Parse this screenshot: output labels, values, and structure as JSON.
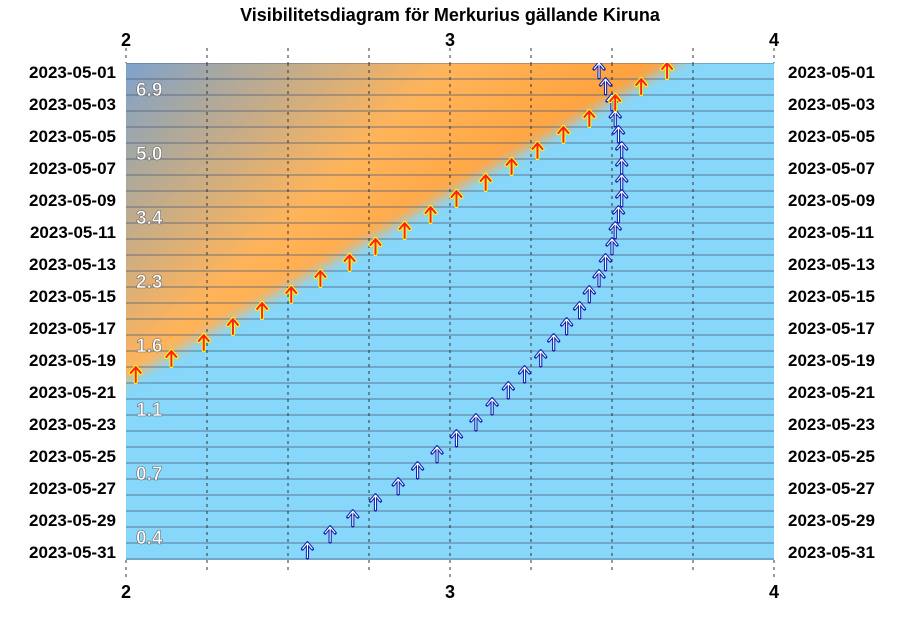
{
  "chart_data": {
    "type": "scatter",
    "title": "Visibilitetsdiagram för Merkurius gällande Kiruna",
    "xlim": [
      2,
      4
    ],
    "x_ticks": [
      "2",
      "3",
      "4"
    ],
    "dates": [
      "2023-05-01",
      "2023-05-03",
      "2023-05-05",
      "2023-05-07",
      "2023-05-09",
      "2023-05-11",
      "2023-05-13",
      "2023-05-15",
      "2023-05-17",
      "2023-05-19",
      "2023-05-21",
      "2023-05-23",
      "2023-05-25",
      "2023-05-27",
      "2023-05-29",
      "2023-05-31"
    ],
    "magnitudes": [
      {
        "label": "6.9",
        "date": "2023-05-02"
      },
      {
        "label": "5.0",
        "date": "2023-05-06"
      },
      {
        "label": "3.4",
        "date": "2023-05-10"
      },
      {
        "label": "2.3",
        "date": "2023-05-14"
      },
      {
        "label": "1.6",
        "date": "2023-05-18"
      },
      {
        "label": "1.1",
        "date": "2023-05-22"
      },
      {
        "label": "0.7",
        "date": "2023-05-26"
      },
      {
        "label": "0.4",
        "date": "2023-05-30"
      }
    ],
    "twilight_boundary": [
      {
        "date": "2023-05-01",
        "x": 3.72
      },
      {
        "date": "2023-05-20",
        "x": 2.0
      }
    ],
    "series": [
      {
        "color": "#ff2020",
        "points": [
          {
            "date": "2023-05-01",
            "x": 3.67
          },
          {
            "date": "2023-05-02",
            "x": 3.59
          },
          {
            "date": "2023-05-03",
            "x": 3.51
          },
          {
            "date": "2023-05-04",
            "x": 3.43
          },
          {
            "date": "2023-05-05",
            "x": 3.35
          },
          {
            "date": "2023-05-06",
            "x": 3.27
          },
          {
            "date": "2023-05-07",
            "x": 3.19
          },
          {
            "date": "2023-05-08",
            "x": 3.11
          },
          {
            "date": "2023-05-09",
            "x": 3.02
          },
          {
            "date": "2023-05-10",
            "x": 2.94
          },
          {
            "date": "2023-05-11",
            "x": 2.86
          },
          {
            "date": "2023-05-12",
            "x": 2.77
          },
          {
            "date": "2023-05-13",
            "x": 2.69
          },
          {
            "date": "2023-05-14",
            "x": 2.6
          },
          {
            "date": "2023-05-15",
            "x": 2.51
          },
          {
            "date": "2023-05-16",
            "x": 2.42
          },
          {
            "date": "2023-05-17",
            "x": 2.33
          },
          {
            "date": "2023-05-18",
            "x": 2.24
          },
          {
            "date": "2023-05-19",
            "x": 2.14
          },
          {
            "date": "2023-05-20",
            "x": 2.03
          }
        ]
      },
      {
        "color": "#1020b0",
        "points": [
          {
            "date": "2023-05-01",
            "x": 3.46
          },
          {
            "date": "2023-05-02",
            "x": 3.48
          },
          {
            "date": "2023-05-03",
            "x": 3.5
          },
          {
            "date": "2023-05-04",
            "x": 3.51
          },
          {
            "date": "2023-05-05",
            "x": 3.52
          },
          {
            "date": "2023-05-06",
            "x": 3.53
          },
          {
            "date": "2023-05-07",
            "x": 3.53
          },
          {
            "date": "2023-05-08",
            "x": 3.53
          },
          {
            "date": "2023-05-09",
            "x": 3.53
          },
          {
            "date": "2023-05-10",
            "x": 3.52
          },
          {
            "date": "2023-05-11",
            "x": 3.51
          },
          {
            "date": "2023-05-12",
            "x": 3.5
          },
          {
            "date": "2023-05-13",
            "x": 3.48
          },
          {
            "date": "2023-05-14",
            "x": 3.46
          },
          {
            "date": "2023-05-15",
            "x": 3.43
          },
          {
            "date": "2023-05-16",
            "x": 3.4
          },
          {
            "date": "2023-05-17",
            "x": 3.36
          },
          {
            "date": "2023-05-18",
            "x": 3.32
          },
          {
            "date": "2023-05-19",
            "x": 3.28
          },
          {
            "date": "2023-05-20",
            "x": 3.23
          },
          {
            "date": "2023-05-21",
            "x": 3.18
          },
          {
            "date": "2023-05-22",
            "x": 3.13
          },
          {
            "date": "2023-05-23",
            "x": 3.08
          },
          {
            "date": "2023-05-24",
            "x": 3.02
          },
          {
            "date": "2023-05-25",
            "x": 2.96
          },
          {
            "date": "2023-05-26",
            "x": 2.9
          },
          {
            "date": "2023-05-27",
            "x": 2.84
          },
          {
            "date": "2023-05-28",
            "x": 2.77
          },
          {
            "date": "2023-05-29",
            "x": 2.7
          },
          {
            "date": "2023-05-30",
            "x": 2.63
          },
          {
            "date": "2023-05-31",
            "x": 2.56
          }
        ]
      }
    ],
    "colors": {
      "sky": "#87d7fa",
      "twilight_orange": "#ff8c1a",
      "twilight_light": "#ffb45a",
      "night_gray": "#a0a0a0",
      "night_blue": "#6fa0e0",
      "row_line": "#4a5a7a",
      "arrow_red": "#ff2020",
      "arrow_blue": "#1020b0"
    },
    "grid": true
  }
}
